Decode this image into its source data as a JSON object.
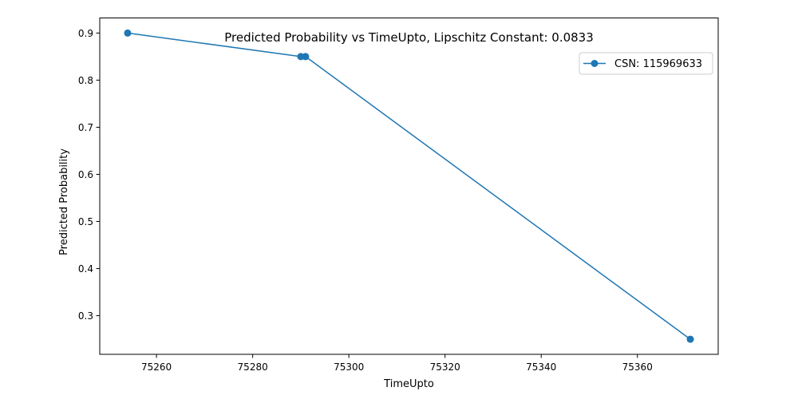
{
  "chart_data": {
    "type": "line",
    "title": "Predicted Probability vs TimeUpto, Lipschitz Constant: 0.0833",
    "xlabel": "TimeUpto",
    "ylabel": "Predicted Probability",
    "xlim": [
      75248.2,
      75376.8
    ],
    "ylim": [
      0.218,
      0.932
    ],
    "xticks": [
      75260,
      75280,
      75300,
      75320,
      75340,
      75360
    ],
    "yticks": [
      0.3,
      0.4,
      0.5,
      0.6,
      0.7,
      0.8,
      0.9
    ],
    "grid": false,
    "legend_position": "top-right",
    "series": [
      {
        "name": "CSN: 115969633",
        "color": "#1f77b4",
        "marker": "circle",
        "x": [
          75254,
          75290,
          75291,
          75371
        ],
        "y": [
          0.9,
          0.85,
          0.85,
          0.25
        ]
      }
    ]
  }
}
